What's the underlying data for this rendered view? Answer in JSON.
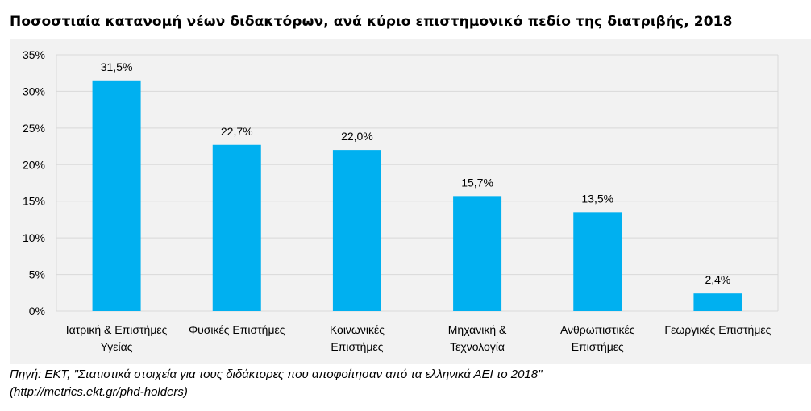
{
  "chart_data": {
    "type": "bar",
    "title": "Ποσοστιαία κατανομή νέων διδακτόρων, ανά κύριο επιστημονικό πεδίο της διατριβής, 2018",
    "xlabel": "",
    "ylabel": "",
    "ylim": [
      0,
      35
    ],
    "yticks": [
      "0%",
      "5%",
      "10%",
      "15%",
      "20%",
      "25%",
      "30%",
      "35%"
    ],
    "grid": true,
    "categories": [
      [
        "Ιατρική & Επιστήμες",
        "Υγείας"
      ],
      [
        "Φυσικές Επιστήμες"
      ],
      [
        "Κοινωνικές",
        "Επιστήμες"
      ],
      [
        "Μηχανική &",
        "Τεχνολογία"
      ],
      [
        "Ανθρωπιστικές",
        "Επιστήμες"
      ],
      [
        "Γεωργικές Επιστήμες"
      ]
    ],
    "values": [
      31.5,
      22.7,
      22.0,
      15.7,
      13.5,
      2.4
    ],
    "data_labels": [
      "31,5%",
      "22,7%",
      "22,0%",
      "15,7%",
      "13,5%",
      "2,4%"
    ],
    "bar_color": "#00b0f0"
  },
  "caption": {
    "line1": "Πηγή: ΕΚΤ, \"Στατιστικά στοιχεία για τους διδάκτορες που αποφοίτησαν από τα ελληνικά ΑΕΙ το 2018\"",
    "line2": "(http://metrics.ekt.gr/phd-holders)"
  }
}
